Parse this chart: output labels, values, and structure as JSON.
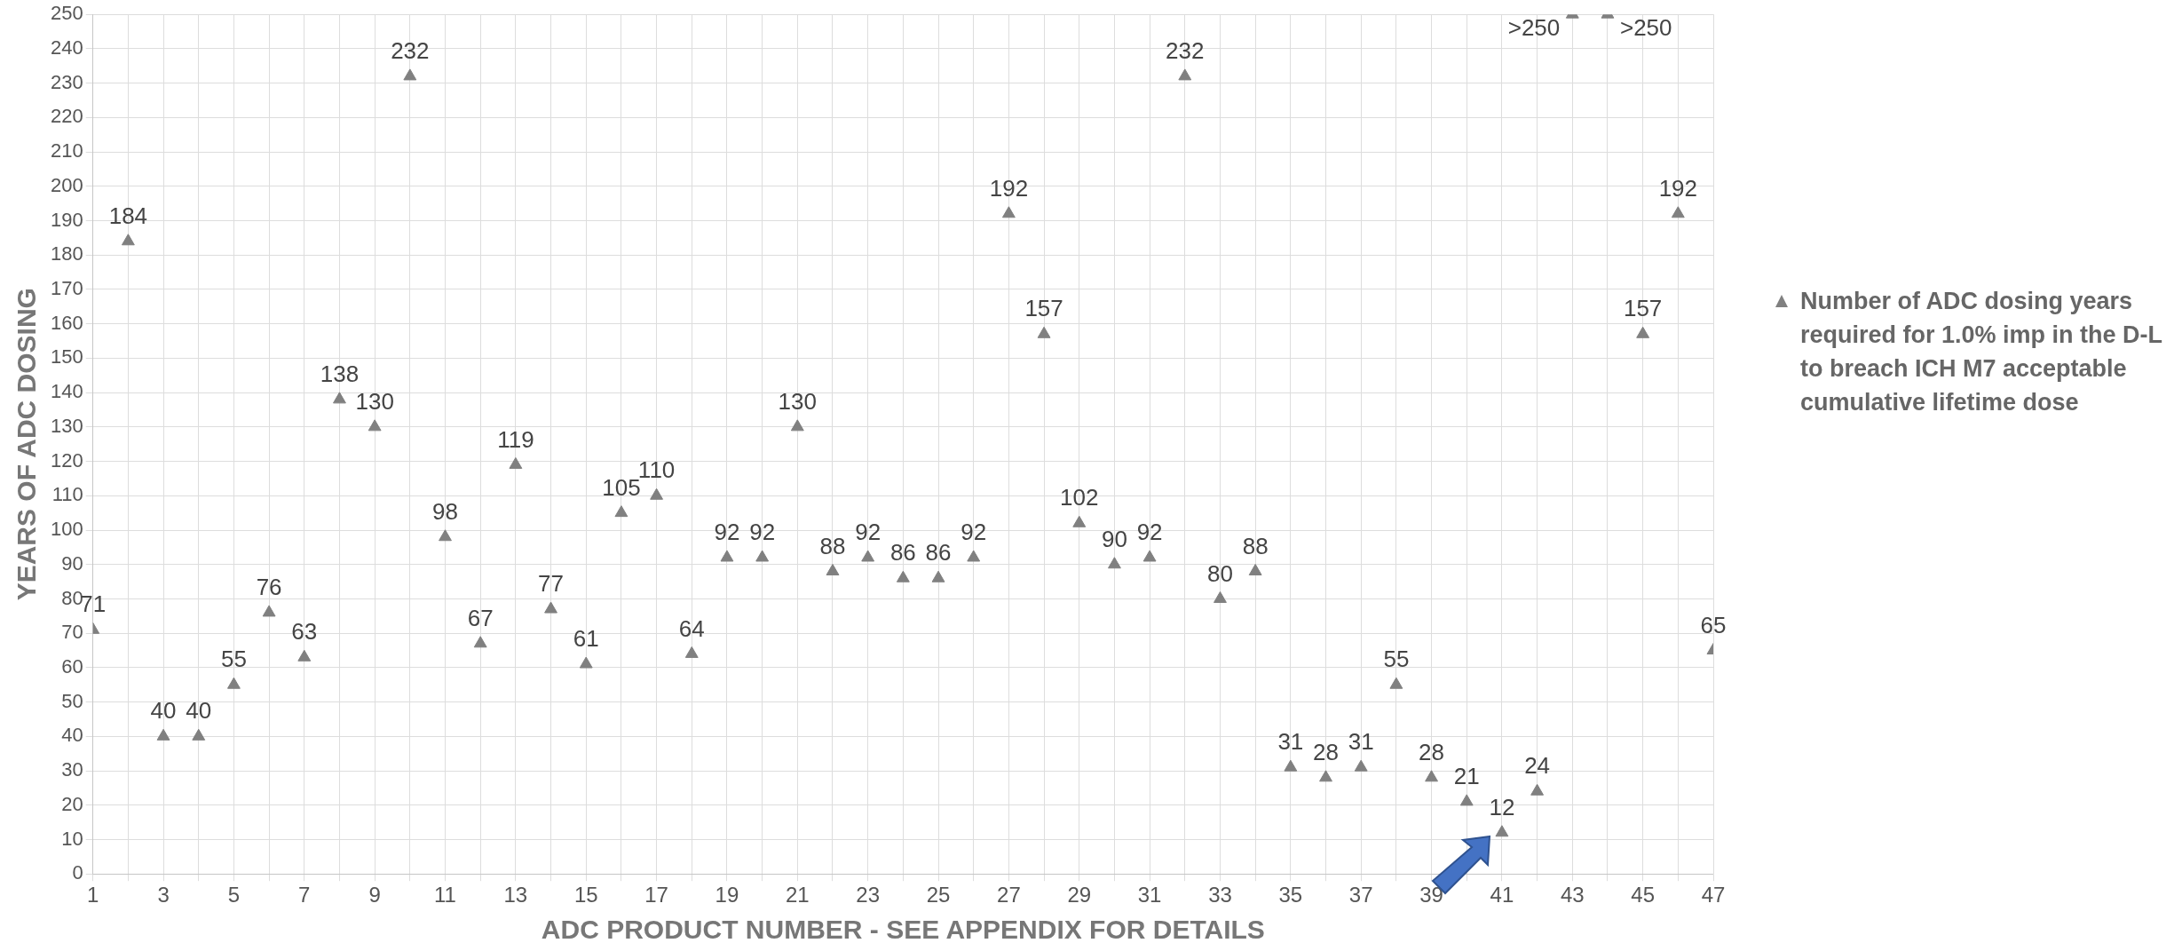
{
  "chart_data": {
    "type": "scatter",
    "xlabel": "ADC PRODUCT NUMBER - SEE APPENDIX FOR DETAILS",
    "ylabel": "YEARS OF ADC DOSING",
    "x": [
      1,
      2,
      3,
      4,
      5,
      6,
      7,
      8,
      9,
      10,
      11,
      12,
      13,
      14,
      15,
      16,
      17,
      18,
      19,
      20,
      21,
      22,
      23,
      24,
      25,
      26,
      27,
      28,
      29,
      30,
      31,
      32,
      33,
      34,
      35,
      36,
      37,
      38,
      39,
      40,
      41,
      42,
      43,
      44,
      45,
      46,
      47
    ],
    "series": [
      {
        "name": "Number of ADC dosing years required for 1.0% imp in the D-L to breach ICH M7 acceptable cumulative lifetime dose",
        "color": "#808080",
        "values": [
          71,
          184,
          40,
          40,
          55,
          76,
          63,
          138,
          130,
          232,
          98,
          67,
          119,
          77,
          61,
          105,
          110,
          64,
          92,
          92,
          130,
          88,
          92,
          86,
          86,
          92,
          192,
          157,
          102,
          90,
          92,
          232,
          80,
          88,
          31,
          28,
          31,
          55,
          28,
          21,
          12,
          24,
          250,
          250,
          157,
          192,
          65
        ],
        "value_labels": [
          "71",
          "184",
          "40",
          "40",
          "55",
          "76",
          "63",
          "138",
          "130",
          "232",
          "98",
          "67",
          "119",
          "77",
          "61",
          "105",
          "110",
          "64",
          "92",
          "92",
          "130",
          "88",
          "92",
          "86",
          "86",
          "92",
          "192",
          "157",
          "102",
          "90",
          "92",
          "232",
          "80",
          "88",
          "31",
          "28",
          "31",
          "55",
          "28",
          "21",
          "12",
          "24",
          ">250",
          ">250",
          "157",
          "192",
          "65"
        ]
      }
    ],
    "xlim": [
      1,
      47
    ],
    "xticks": [
      1,
      {
        "value": 2,
        "label": null
      },
      3,
      {
        "value": 4,
        "label": null
      },
      5,
      {
        "value": 6,
        "label": null
      },
      7,
      {
        "value": 8,
        "label": null
      },
      9,
      {
        "value": 10,
        "label": null
      },
      11,
      {
        "value": 12,
        "label": null
      },
      13,
      {
        "value": 14,
        "label": null
      },
      15,
      {
        "value": 16,
        "label": null
      },
      17,
      {
        "value": 18,
        "label": null
      },
      19,
      {
        "value": 20,
        "label": null
      },
      21,
      {
        "value": 22,
        "label": null
      },
      23,
      {
        "value": 24,
        "label": null
      },
      25,
      {
        "value": 26,
        "label": null
      },
      27,
      {
        "value": 28,
        "label": null
      },
      29,
      {
        "value": 30,
        "label": null
      },
      31,
      {
        "value": 32,
        "label": null
      },
      33,
      {
        "value": 34,
        "label": null
      },
      35,
      {
        "value": 36,
        "label": null
      },
      37,
      {
        "value": 38,
        "label": null
      },
      39,
      {
        "value": 40,
        "label": null
      },
      41,
      {
        "value": 42,
        "label": null
      },
      43,
      {
        "value": 44,
        "label": null
      },
      45,
      {
        "value": 46,
        "label": null
      },
      47
    ],
    "ylim": [
      0,
      250
    ],
    "yticks": [
      0,
      10,
      20,
      30,
      40,
      50,
      60,
      70,
      80,
      90,
      100,
      110,
      120,
      130,
      140,
      150,
      160,
      170,
      180,
      190,
      200,
      210,
      220,
      230,
      240,
      250
    ],
    "grid": true,
    "legend": "right",
    "marker": "triangle"
  }
}
